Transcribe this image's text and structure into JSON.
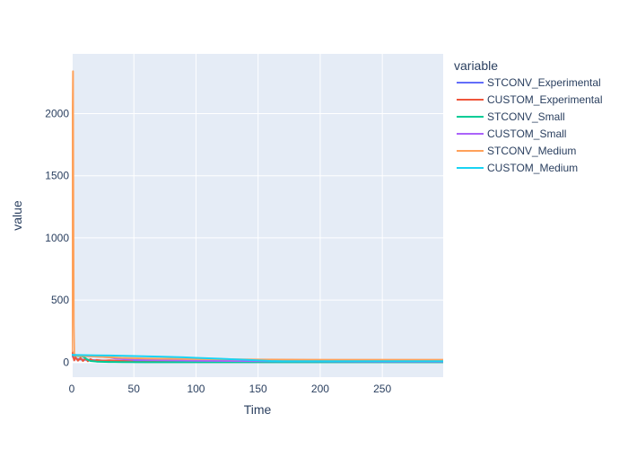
{
  "chart_data": {
    "type": "line",
    "title": "",
    "xlabel": "Time",
    "ylabel": "value",
    "xlim": [
      0,
      299
    ],
    "ylim": [
      -120,
      2480
    ],
    "xticks": [
      0,
      50,
      100,
      150,
      200,
      250
    ],
    "yticks": [
      0,
      500,
      1000,
      1500,
      2000
    ],
    "grid": true,
    "legend": {
      "title": "variable",
      "placement": "right"
    },
    "series": [
      {
        "name": "STCONV_Experimental",
        "color": "#636efa",
        "x": [
          0,
          1,
          3,
          5,
          8,
          10,
          15,
          20,
          30,
          40,
          60,
          100,
          150,
          200,
          250,
          299
        ],
        "y": [
          85,
          40,
          30,
          25,
          22,
          20,
          18,
          15,
          12,
          10,
          8,
          6,
          5,
          5,
          5,
          5
        ]
      },
      {
        "name": "CUSTOM_Experimental",
        "color": "#ef553b",
        "x": [
          0,
          1,
          2,
          3,
          5,
          7,
          9,
          11,
          13,
          15,
          18,
          20,
          25,
          30,
          40,
          48,
          50,
          60,
          100,
          150,
          200,
          250,
          299
        ],
        "y": [
          95,
          50,
          15,
          40,
          12,
          35,
          10,
          30,
          8,
          25,
          10,
          18,
          12,
          15,
          10,
          8,
          2,
          2,
          2,
          2,
          2,
          2,
          2
        ]
      },
      {
        "name": "STCONV_Small",
        "color": "#00cc96",
        "x": [
          0,
          2,
          5,
          8,
          10,
          12,
          15,
          20,
          30,
          40,
          60,
          100,
          150,
          200,
          250,
          299
        ],
        "y": [
          60,
          55,
          50,
          48,
          40,
          25,
          10,
          5,
          2,
          1,
          0,
          0,
          0,
          0,
          0,
          0
        ]
      },
      {
        "name": "CUSTOM_Small",
        "color": "#ab63fa",
        "x": [
          0,
          5,
          10,
          20,
          30,
          35,
          40,
          50,
          60,
          100,
          150,
          200,
          250,
          299
        ],
        "y": [
          60,
          55,
          50,
          45,
          40,
          30,
          25,
          20,
          18,
          12,
          8,
          6,
          5,
          5
        ]
      },
      {
        "name": "STCONV_Medium",
        "color": "#ffa15a",
        "x": [
          0,
          0.3,
          0.6,
          1,
          1.3,
          1.6,
          2,
          3,
          5,
          10,
          20,
          30,
          40,
          60,
          100,
          150,
          200,
          250,
          299
        ],
        "y": [
          80,
          1200,
          1900,
          2340,
          1200,
          300,
          70,
          55,
          52,
          50,
          45,
          40,
          35,
          30,
          25,
          22,
          20,
          20,
          20
        ]
      },
      {
        "name": "CUSTOM_Medium",
        "color": "#19d3f3",
        "x": [
          0,
          5,
          10,
          20,
          30,
          50,
          70,
          90,
          100,
          120,
          140,
          160,
          170,
          200,
          250,
          299
        ],
        "y": [
          60,
          58,
          57,
          55,
          54,
          50,
          45,
          40,
          35,
          28,
          20,
          10,
          8,
          8,
          8,
          8
        ]
      }
    ]
  }
}
